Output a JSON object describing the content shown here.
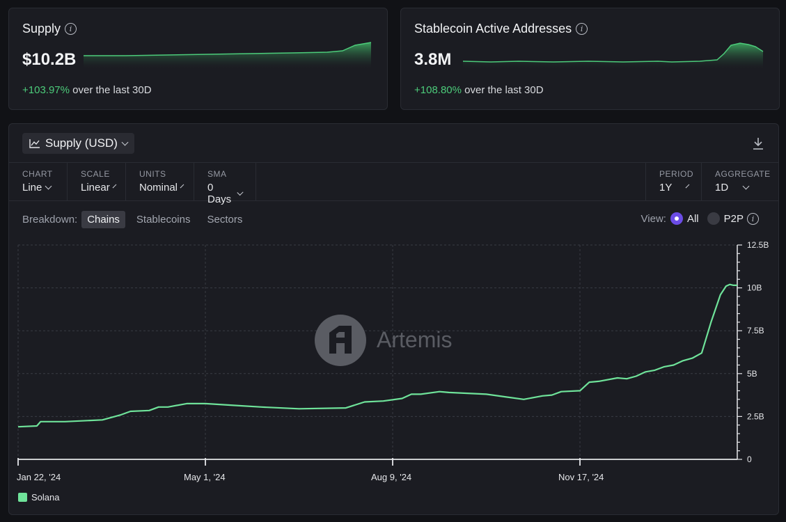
{
  "kpi_cards": [
    {
      "title": "Supply",
      "value": "$10.2B",
      "change": "+103.97%",
      "change_suffix": "over the last 30D"
    },
    {
      "title": "Stablecoin Active Addresses",
      "value": "3.8M",
      "change": "+108.80%",
      "change_suffix": "over the last 30D"
    }
  ],
  "chart_panel": {
    "metric": "Supply (USD)",
    "controls": [
      {
        "label": "CHART",
        "value": "Line"
      },
      {
        "label": "SCALE",
        "value": "Linear"
      },
      {
        "label": "UNITS",
        "value": "Nominal"
      },
      {
        "label": "SMA",
        "value": "0 Days"
      }
    ],
    "right_controls": [
      {
        "label": "PERIOD",
        "value": "1Y"
      },
      {
        "label": "AGGREGATE",
        "value": "1D"
      }
    ],
    "breakdown_label": "Breakdown:",
    "breakdown_tabs": [
      "Chains",
      "Stablecoins",
      "Sectors"
    ],
    "view_label": "View:",
    "view_options": [
      "All",
      "P2P"
    ],
    "watermark": "Artemis"
  },
  "colors": {
    "accent_green": "#6fe39a",
    "positive": "#4ccb7a",
    "radio_active": "#6b4ce6"
  },
  "chart_data": {
    "type": "line",
    "title": "",
    "xlabel": "",
    "ylabel": "",
    "x_ticks": [
      "Jan 22, '24",
      "May 1, '24",
      "Aug 9, '24",
      "Nov 17, '24"
    ],
    "y_ticks": [
      "0",
      "2.5B",
      "5B",
      "7.5B",
      "10B",
      "12.5B"
    ],
    "ylim": [
      0,
      12.5
    ],
    "x_unit_note": "days from Jan 22, '24",
    "series": [
      {
        "name": "Solana",
        "x": [
          0,
          10,
          12,
          25,
          45,
          55,
          60,
          70,
          75,
          80,
          90,
          100,
          115,
          130,
          150,
          175,
          185,
          195,
          205,
          210,
          215,
          225,
          230,
          240,
          250,
          260,
          270,
          280,
          285,
          290,
          300,
          305,
          310,
          320,
          325,
          330,
          335,
          340,
          345,
          350,
          355,
          360,
          365,
          370,
          375,
          378,
          380,
          382,
          384
        ],
        "values": [
          1.9,
          1.95,
          2.2,
          2.2,
          2.3,
          2.6,
          2.8,
          2.85,
          3.05,
          3.05,
          3.25,
          3.25,
          3.15,
          3.05,
          2.95,
          3.0,
          3.35,
          3.4,
          3.55,
          3.8,
          3.8,
          3.95,
          3.9,
          3.85,
          3.8,
          3.65,
          3.5,
          3.7,
          3.75,
          3.95,
          4.0,
          4.5,
          4.55,
          4.75,
          4.7,
          4.85,
          5.1,
          5.2,
          5.4,
          5.5,
          5.75,
          5.9,
          6.2,
          8.0,
          9.6,
          10.1,
          10.2,
          10.15,
          10.15
        ]
      }
    ]
  }
}
